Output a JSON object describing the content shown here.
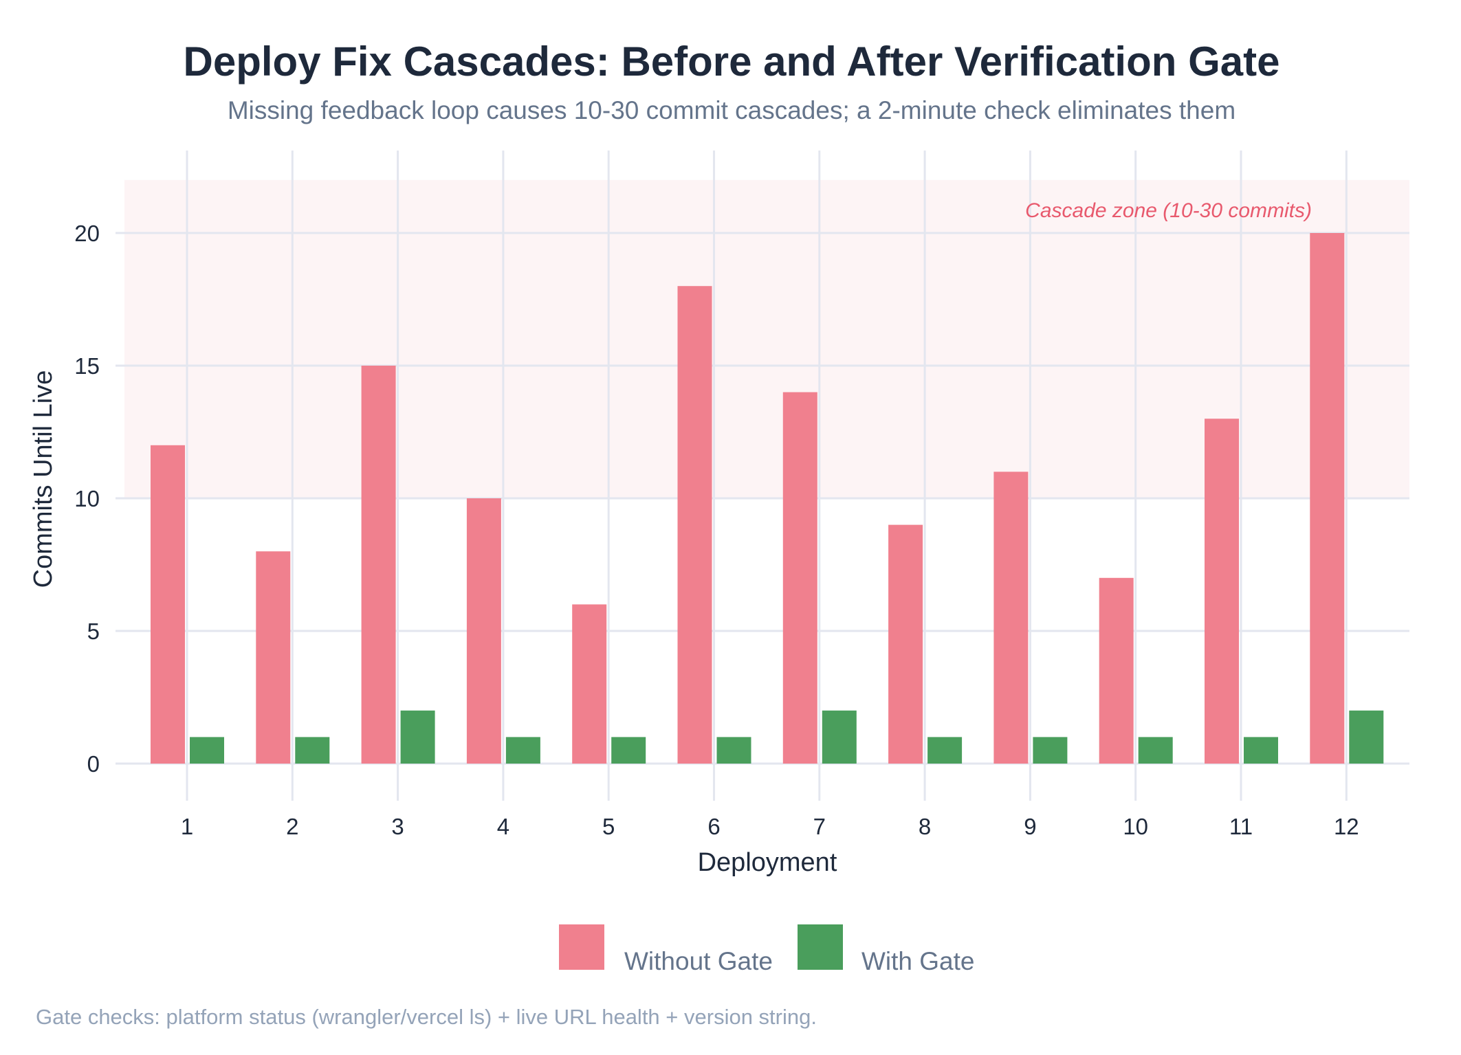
{
  "chart_data": {
    "type": "bar",
    "title": "Deploy Fix Cascades: Before and After Verification Gate",
    "subtitle": "Missing feedback loop causes 10-30 commit cascades; a 2-minute check eliminates them",
    "xlabel": "Deployment",
    "ylabel": "Commits Until Live",
    "categories": [
      "1",
      "2",
      "3",
      "4",
      "5",
      "6",
      "7",
      "8",
      "9",
      "10",
      "11",
      "12"
    ],
    "series": [
      {
        "name": "Without Gate",
        "color": "#f0808e",
        "values": [
          12,
          8,
          15,
          10,
          6,
          18,
          14,
          9,
          11,
          7,
          13,
          20
        ]
      },
      {
        "name": "With Gate",
        "color": "#4a9e5c",
        "values": [
          1,
          1,
          2,
          1,
          1,
          1,
          2,
          1,
          1,
          1,
          1,
          2
        ]
      }
    ],
    "yticks": [
      0,
      5,
      10,
      15,
      20
    ],
    "ylim": [
      0,
      22
    ],
    "grid": true,
    "legend_position": "bottom-center",
    "annotation": {
      "text": "Cascade zone (10-30 commits)",
      "band_range": [
        10,
        30
      ],
      "band_color": "#fdf4f5",
      "text_color": "#e8596d"
    },
    "footer": "Gate checks: platform status (wrangler/vercel ls) + live URL health + version string."
  }
}
